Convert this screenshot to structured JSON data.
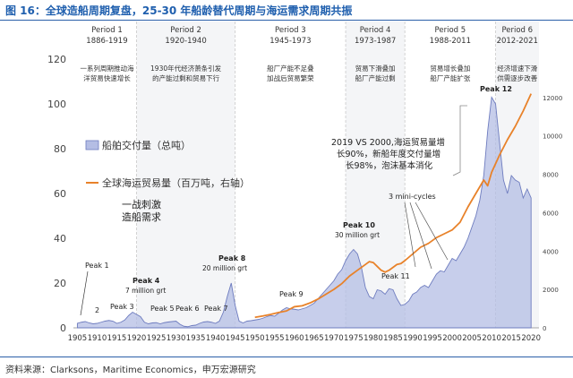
{
  "figure": {
    "title": "图 16：全球造船周期复盘，25-30 年船龄替代周期与海运需求周期共振",
    "source": "资料来源：Clarksons，Maritime Economics，申万宏源研究"
  },
  "chart_data": {
    "type": "area",
    "x_ticks": [
      1905,
      1910,
      1915,
      1920,
      1925,
      1930,
      1935,
      1940,
      1945,
      1950,
      1955,
      1960,
      1965,
      1970,
      1975,
      1980,
      1985,
      1990,
      1995,
      2000,
      2005,
      2010,
      2015,
      2020
    ],
    "xlim": [
      1904,
      2022
    ],
    "ylim_left": [
      0,
      120
    ],
    "left_ticks": [
      0,
      20,
      40,
      60,
      80,
      100,
      120
    ],
    "ylim_right": [
      0,
      14000
    ],
    "right_ticks": [
      0,
      2000,
      4000,
      6000,
      8000,
      10000,
      12000
    ],
    "series": [
      {
        "name": "船舶交付量（总吨）",
        "axis": "left",
        "color": "#b4bde4",
        "points": [
          [
            1905,
            2
          ],
          [
            1906,
            2.5
          ],
          [
            1907,
            2.8
          ],
          [
            1908,
            2.2
          ],
          [
            1909,
            1.8
          ],
          [
            1910,
            2
          ],
          [
            1911,
            2.5
          ],
          [
            1912,
            3
          ],
          [
            1913,
            3.3
          ],
          [
            1914,
            3
          ],
          [
            1915,
            2
          ],
          [
            1916,
            2.5
          ],
          [
            1917,
            3.5
          ],
          [
            1918,
            5.5
          ],
          [
            1919,
            7
          ],
          [
            1920,
            6
          ],
          [
            1921,
            5
          ],
          [
            1922,
            2.5
          ],
          [
            1923,
            1.8
          ],
          [
            1924,
            2.2
          ],
          [
            1925,
            2.3
          ],
          [
            1926,
            1.8
          ],
          [
            1927,
            2.3
          ],
          [
            1928,
            2.6
          ],
          [
            1929,
            2.8
          ],
          [
            1930,
            3
          ],
          [
            1931,
            1.6
          ],
          [
            1932,
            0.7
          ],
          [
            1933,
            0.5
          ],
          [
            1934,
            1
          ],
          [
            1935,
            1.2
          ],
          [
            1936,
            2
          ],
          [
            1937,
            2.6
          ],
          [
            1938,
            2.8
          ],
          [
            1939,
            2.5
          ],
          [
            1940,
            2
          ],
          [
            1941,
            3
          ],
          [
            1942,
            7
          ],
          [
            1943,
            14
          ],
          [
            1944,
            20
          ],
          [
            1945,
            10
          ],
          [
            1946,
            3
          ],
          [
            1947,
            2.2
          ],
          [
            1948,
            3
          ],
          [
            1949,
            3.2
          ],
          [
            1950,
            3.5
          ],
          [
            1951,
            3.8
          ],
          [
            1952,
            4.3
          ],
          [
            1953,
            5
          ],
          [
            1954,
            5.5
          ],
          [
            1955,
            5.2
          ],
          [
            1956,
            6.5
          ],
          [
            1957,
            8
          ],
          [
            1958,
            9
          ],
          [
            1959,
            8.5
          ],
          [
            1960,
            8.3
          ],
          [
            1961,
            8
          ],
          [
            1962,
            8.5
          ],
          [
            1963,
            9
          ],
          [
            1964,
            10
          ],
          [
            1965,
            11
          ],
          [
            1966,
            13
          ],
          [
            1967,
            15
          ],
          [
            1968,
            17
          ],
          [
            1969,
            19
          ],
          [
            1970,
            21
          ],
          [
            1971,
            24
          ],
          [
            1972,
            26
          ],
          [
            1973,
            30
          ],
          [
            1974,
            33
          ],
          [
            1975,
            35
          ],
          [
            1976,
            33
          ],
          [
            1977,
            27
          ],
          [
            1978,
            18
          ],
          [
            1979,
            14
          ],
          [
            1980,
            13
          ],
          [
            1981,
            17
          ],
          [
            1982,
            16.5
          ],
          [
            1983,
            15
          ],
          [
            1984,
            17.5
          ],
          [
            1985,
            17
          ],
          [
            1986,
            13
          ],
          [
            1987,
            10
          ],
          [
            1988,
            10.5
          ],
          [
            1989,
            12
          ],
          [
            1990,
            15
          ],
          [
            1991,
            16
          ],
          [
            1992,
            18
          ],
          [
            1993,
            19
          ],
          [
            1994,
            18
          ],
          [
            1995,
            21
          ],
          [
            1996,
            24
          ],
          [
            1997,
            25.5
          ],
          [
            1998,
            25
          ],
          [
            1999,
            28
          ],
          [
            2000,
            31
          ],
          [
            2001,
            30
          ],
          [
            2002,
            33
          ],
          [
            2003,
            36
          ],
          [
            2004,
            40
          ],
          [
            2005,
            45
          ],
          [
            2006,
            50
          ],
          [
            2007,
            57
          ],
          [
            2008,
            68
          ],
          [
            2009,
            88
          ],
          [
            2010,
            103
          ],
          [
            2011,
            100
          ],
          [
            2012,
            83
          ],
          [
            2013,
            66
          ],
          [
            2014,
            60
          ],
          [
            2015,
            68
          ],
          [
            2016,
            66
          ],
          [
            2017,
            65
          ],
          [
            2018,
            58
          ],
          [
            2019,
            62
          ],
          [
            2020,
            58
          ]
        ]
      },
      {
        "name": "全球海运贸易量（百万吨，右轴）",
        "axis": "right",
        "color": "#e8822a",
        "points": [
          [
            1950,
            550
          ],
          [
            1952,
            620
          ],
          [
            1954,
            700
          ],
          [
            1956,
            800
          ],
          [
            1958,
            880
          ],
          [
            1960,
            1100
          ],
          [
            1962,
            1150
          ],
          [
            1964,
            1300
          ],
          [
            1966,
            1500
          ],
          [
            1968,
            1750
          ],
          [
            1970,
            2000
          ],
          [
            1972,
            2300
          ],
          [
            1974,
            2700
          ],
          [
            1976,
            3000
          ],
          [
            1978,
            3300
          ],
          [
            1979,
            3450
          ],
          [
            1980,
            3400
          ],
          [
            1981,
            3200
          ],
          [
            1982,
            3000
          ],
          [
            1983,
            2900
          ],
          [
            1984,
            3000
          ],
          [
            1985,
            3150
          ],
          [
            1986,
            3300
          ],
          [
            1987,
            3350
          ],
          [
            1988,
            3500
          ],
          [
            1990,
            3850
          ],
          [
            1992,
            4200
          ],
          [
            1994,
            4400
          ],
          [
            1996,
            4700
          ],
          [
            1998,
            4900
          ],
          [
            2000,
            5100
          ],
          [
            2002,
            5500
          ],
          [
            2004,
            6300
          ],
          [
            2006,
            7000
          ],
          [
            2008,
            7700
          ],
          [
            2009,
            7400
          ],
          [
            2010,
            8100
          ],
          [
            2012,
            9000
          ],
          [
            2014,
            9800
          ],
          [
            2016,
            10500
          ],
          [
            2018,
            11300
          ],
          [
            2020,
            12200
          ]
        ]
      }
    ],
    "periods": [
      {
        "label": "Period 1",
        "years": "1886-1919",
        "start": 1905,
        "end": 1920,
        "desc": [
          "一系列周期推动海",
          "洋贸易快速增长"
        ]
      },
      {
        "label": "Period 2",
        "years": "1920-1940",
        "start": 1920,
        "end": 1945,
        "desc": [
          "1930年代经济萧条引发",
          "的产能过剩和贸易下行"
        ]
      },
      {
        "label": "Period 3",
        "years": "1945-1973",
        "start": 1945,
        "end": 1973,
        "desc": [
          "船厂产能不足叠",
          "加战后贸易繁荣"
        ]
      },
      {
        "label": "Period 4",
        "years": "1973-1987",
        "start": 1973,
        "end": 1988,
        "desc": [
          "贸易下滑叠加",
          "船厂产能过剩"
        ]
      },
      {
        "label": "Period 5",
        "years": "1988-2011",
        "start": 1988,
        "end": 2011,
        "desc": [
          "贸易增长叠加",
          "船厂产能扩张"
        ]
      },
      {
        "label": "Period 6",
        "years": "2012-2021",
        "start": 2011,
        "end": 2022,
        "desc": [
          "经济增速下滑",
          "供需逐步改善"
        ]
      }
    ],
    "annotations": {
      "peak1": "Peak 1",
      "peak2": "2",
      "peak3": "Peak 3",
      "peak4": "Peak 4",
      "peak4_sub": "7 million grt",
      "peak5": "Peak 5",
      "peak6": "Peak 6",
      "peak7": "Peak 7",
      "peak8": "Peak 8",
      "peak8_sub": "20 million grt",
      "peak9": "Peak 9",
      "peak10": "Peak 10",
      "peak10_sub": "30 million grt",
      "peak11": "Peak 11",
      "peak12": "Peak 12",
      "mini_cycles": "3 mini-cycles",
      "war_note": [
        "一战刺激",
        "造船需求"
      ],
      "vs_note": [
        "2019 VS 2000,海运贸易量增",
        "长90%，新船年度交付量增",
        "长98%，泡沫基本消化"
      ]
    }
  }
}
